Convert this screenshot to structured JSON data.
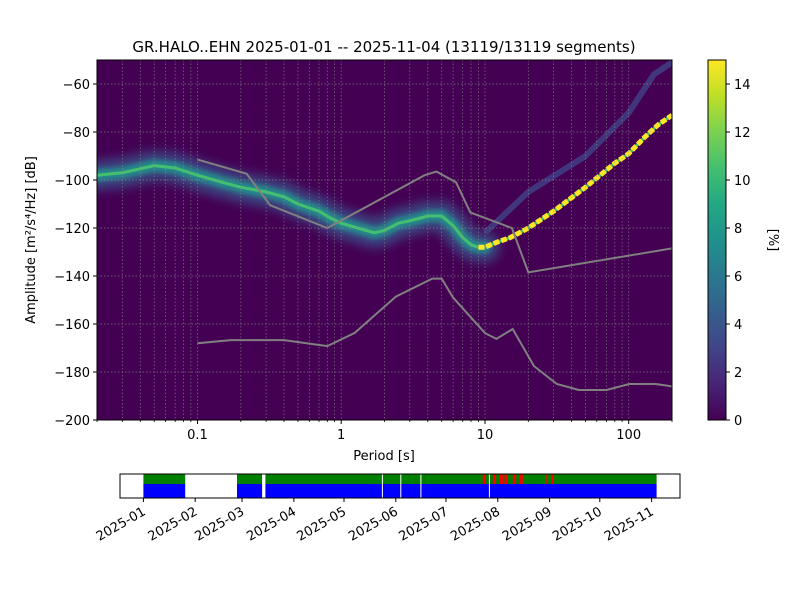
{
  "title": "GR.HALO..EHN   2025-01-01 -- 2025-11-04  (13119/13119 segments)",
  "chart_data": [
    {
      "type": "heatmap",
      "title": "GR.HALO..EHN   2025-01-01 -- 2025-11-04  (13119/13119 segments)",
      "xlabel": "Period [s]",
      "ylabel": "Amplitude [m²/s⁴/Hz] [dB]",
      "x_scale": "log",
      "xlim": [
        0.02,
        200
      ],
      "ylim": [
        -200,
        -50
      ],
      "x_ticks": [
        {
          "value": 0.1,
          "label": "0.1"
        },
        {
          "value": 1,
          "label": "1"
        },
        {
          "value": 10,
          "label": "10"
        },
        {
          "value": 100,
          "label": "100"
        }
      ],
      "y_ticks": [
        {
          "value": -60,
          "label": "−60"
        },
        {
          "value": -80,
          "label": "−80"
        },
        {
          "value": -100,
          "label": "−100"
        },
        {
          "value": -120,
          "label": "−120"
        },
        {
          "value": -140,
          "label": "−140"
        },
        {
          "value": -160,
          "label": "−160"
        },
        {
          "value": -180,
          "label": "−180"
        },
        {
          "value": -200,
          "label": "−200"
        }
      ],
      "grid": true,
      "colorbar": {
        "label": "[%]",
        "range": [
          0,
          15
        ],
        "ticks": [
          {
            "value": 0,
            "label": "0"
          },
          {
            "value": 2,
            "label": "2"
          },
          {
            "value": 4,
            "label": "4"
          },
          {
            "value": 6,
            "label": "6"
          },
          {
            "value": 8,
            "label": "8"
          },
          {
            "value": 10,
            "label": "10"
          },
          {
            "value": 12,
            "label": "12"
          },
          {
            "value": 14,
            "label": "14"
          }
        ]
      },
      "ppsd_mode": [
        [
          0.02,
          -98
        ],
        [
          0.03,
          -97
        ],
        [
          0.05,
          -94
        ],
        [
          0.07,
          -95
        ],
        [
          0.1,
          -98
        ],
        [
          0.15,
          -101
        ],
        [
          0.2,
          -103
        ],
        [
          0.3,
          -105
        ],
        [
          0.4,
          -107
        ],
        [
          0.5,
          -110
        ],
        [
          0.7,
          -113
        ],
        [
          0.85,
          -116
        ],
        [
          1.0,
          -118
        ],
        [
          1.3,
          -120
        ],
        [
          1.7,
          -122
        ],
        [
          2.0,
          -121
        ],
        [
          2.5,
          -118
        ],
        [
          3.0,
          -117
        ],
        [
          4.0,
          -115
        ],
        [
          5.0,
          -115
        ],
        [
          6.0,
          -119
        ],
        [
          7.0,
          -124
        ],
        [
          8.0,
          -127
        ],
        [
          9.0,
          -128
        ],
        [
          10.0,
          -128
        ],
        [
          12.0,
          -126
        ],
        [
          15.0,
          -124
        ],
        [
          20.0,
          -120
        ],
        [
          30.0,
          -113
        ],
        [
          50.0,
          -103
        ],
        [
          80.0,
          -93
        ],
        [
          100.0,
          -89
        ],
        [
          130.0,
          -82
        ],
        [
          160.0,
          -77
        ],
        [
          200.0,
          -73
        ]
      ],
      "ppsd_faint_branch": [
        [
          10,
          -122
        ],
        [
          20,
          -105
        ],
        [
          50,
          -90
        ],
        [
          100,
          -72
        ],
        [
          150,
          -56
        ],
        [
          200,
          -51
        ]
      ],
      "nhnm": [
        [
          0.1,
          -91.5
        ],
        [
          0.22,
          -97.4
        ],
        [
          0.32,
          -110.5
        ],
        [
          0.8,
          -120.0
        ],
        [
          3.8,
          -98.0
        ],
        [
          4.6,
          -96.5
        ],
        [
          6.3,
          -101.0
        ],
        [
          7.9,
          -113.5
        ],
        [
          15.4,
          -120.0
        ],
        [
          20.0,
          -138.5
        ],
        [
          200.0,
          -128.5
        ]
      ],
      "nlnm": [
        [
          0.1,
          -168.0
        ],
        [
          0.17,
          -166.7
        ],
        [
          0.4,
          -166.7
        ],
        [
          0.8,
          -169.2
        ],
        [
          1.24,
          -163.7
        ],
        [
          2.4,
          -148.6
        ],
        [
          4.3,
          -141.1
        ],
        [
          5.0,
          -141.1
        ],
        [
          6.0,
          -149.0
        ],
        [
          10.0,
          -163.8
        ],
        [
          12.0,
          -166.2
        ],
        [
          15.6,
          -162.1
        ],
        [
          21.9,
          -177.5
        ],
        [
          31.6,
          -185.0
        ],
        [
          45.0,
          -187.5
        ],
        [
          70.0,
          -187.5
        ],
        [
          101.0,
          -185.0
        ],
        [
          154.0,
          -185.0
        ],
        [
          200.0,
          -186.0
        ]
      ]
    },
    {
      "type": "timeline",
      "x_range": [
        "2024-12-18",
        "2025-11-18"
      ],
      "x_tick_labels": [
        "2025-01",
        "2025-02",
        "2025-03",
        "2025-04",
        "2025-05",
        "2025-06",
        "2025-07",
        "2025-08",
        "2025-09",
        "2025-10",
        "2025-11"
      ],
      "x_tick_dates": [
        "2025-01-01",
        "2025-02-01",
        "2025-03-01",
        "2025-04-01",
        "2025-05-01",
        "2025-06-01",
        "2025-07-01",
        "2025-08-01",
        "2025-09-01",
        "2025-10-01",
        "2025-11-01"
      ],
      "available_segments": [
        [
          "2025-01-01",
          "2025-01-26"
        ],
        [
          "2025-02-26",
          "2025-03-13"
        ],
        [
          "2025-03-15",
          "2025-11-04"
        ]
      ],
      "gaps": [
        "2025-05-24",
        "2025-06-04",
        "2025-06-16",
        "2025-07-27"
      ],
      "flagged": [
        [
          "2025-07-23",
          "2025-07-25"
        ],
        [
          "2025-07-29",
          "2025-07-31"
        ],
        [
          "2025-08-02",
          "2025-08-04"
        ],
        [
          "2025-08-05",
          "2025-08-07"
        ],
        [
          "2025-08-10",
          "2025-08-12"
        ],
        [
          "2025-08-14",
          "2025-08-16"
        ],
        [
          "2025-08-30",
          "2025-08-31"
        ],
        [
          "2025-09-02",
          "2025-09-03"
        ]
      ],
      "colors": {
        "data": "#0000ff",
        "used": "#008000",
        "flag": "#ff0000"
      }
    }
  ]
}
